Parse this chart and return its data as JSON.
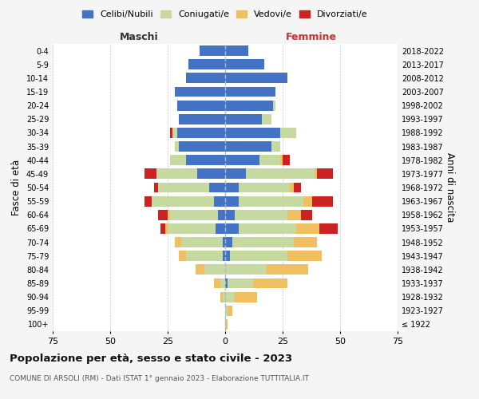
{
  "age_groups": [
    "100+",
    "95-99",
    "90-94",
    "85-89",
    "80-84",
    "75-79",
    "70-74",
    "65-69",
    "60-64",
    "55-59",
    "50-54",
    "45-49",
    "40-44",
    "35-39",
    "30-34",
    "25-29",
    "20-24",
    "15-19",
    "10-14",
    "5-9",
    "0-4"
  ],
  "birth_years": [
    "≤ 1922",
    "1923-1927",
    "1928-1932",
    "1933-1937",
    "1938-1942",
    "1943-1947",
    "1948-1952",
    "1953-1957",
    "1958-1962",
    "1963-1967",
    "1968-1972",
    "1973-1977",
    "1978-1982",
    "1983-1987",
    "1988-1992",
    "1993-1997",
    "1998-2002",
    "2003-2007",
    "2008-2012",
    "2013-2017",
    "2018-2022"
  ],
  "male": {
    "celibi": [
      0,
      0,
      0,
      0,
      0,
      1,
      1,
      4,
      3,
      5,
      7,
      12,
      17,
      20,
      21,
      20,
      21,
      22,
      17,
      16,
      11
    ],
    "coniugati": [
      0,
      0,
      1,
      2,
      9,
      16,
      18,
      21,
      21,
      27,
      22,
      18,
      7,
      2,
      2,
      0,
      0,
      0,
      0,
      0,
      0
    ],
    "vedovi": [
      0,
      0,
      1,
      3,
      4,
      3,
      3,
      1,
      1,
      0,
      0,
      0,
      0,
      0,
      0,
      0,
      0,
      0,
      0,
      0,
      0
    ],
    "divorziati": [
      0,
      0,
      0,
      0,
      0,
      0,
      0,
      2,
      4,
      3,
      2,
      5,
      0,
      0,
      1,
      0,
      0,
      0,
      0,
      0,
      0
    ]
  },
  "female": {
    "nubili": [
      0,
      0,
      0,
      1,
      0,
      2,
      3,
      6,
      4,
      6,
      6,
      9,
      15,
      20,
      24,
      16,
      21,
      22,
      27,
      17,
      10
    ],
    "coniugate": [
      0,
      1,
      4,
      11,
      18,
      25,
      27,
      25,
      23,
      28,
      22,
      30,
      9,
      4,
      7,
      4,
      1,
      0,
      0,
      0,
      0
    ],
    "vedove": [
      1,
      2,
      10,
      15,
      18,
      15,
      10,
      10,
      6,
      4,
      2,
      1,
      1,
      0,
      0,
      0,
      0,
      0,
      0,
      0,
      0
    ],
    "divorziate": [
      0,
      0,
      0,
      0,
      0,
      0,
      0,
      8,
      5,
      9,
      3,
      7,
      3,
      0,
      0,
      0,
      0,
      0,
      0,
      0,
      0
    ]
  },
  "colors": {
    "celibi_nubili": "#4472c4",
    "coniugati": "#c5d9a0",
    "vedovi": "#f0c060",
    "divorziati": "#cc2222"
  },
  "title": "Popolazione per età, sesso e stato civile - 2023",
  "subtitle": "COMUNE DI ARSOLI (RM) - Dati ISTAT 1° gennaio 2023 - Elaborazione TUTTITALIA.IT",
  "xlabel_left": "Maschi",
  "xlabel_right": "Femmine",
  "ylabel_left": "Fasce di età",
  "ylabel_right": "Anni di nascita",
  "xlim": 75,
  "background_color": "#f5f5f5",
  "bar_background": "#ffffff",
  "grid_color": "#cccccc"
}
